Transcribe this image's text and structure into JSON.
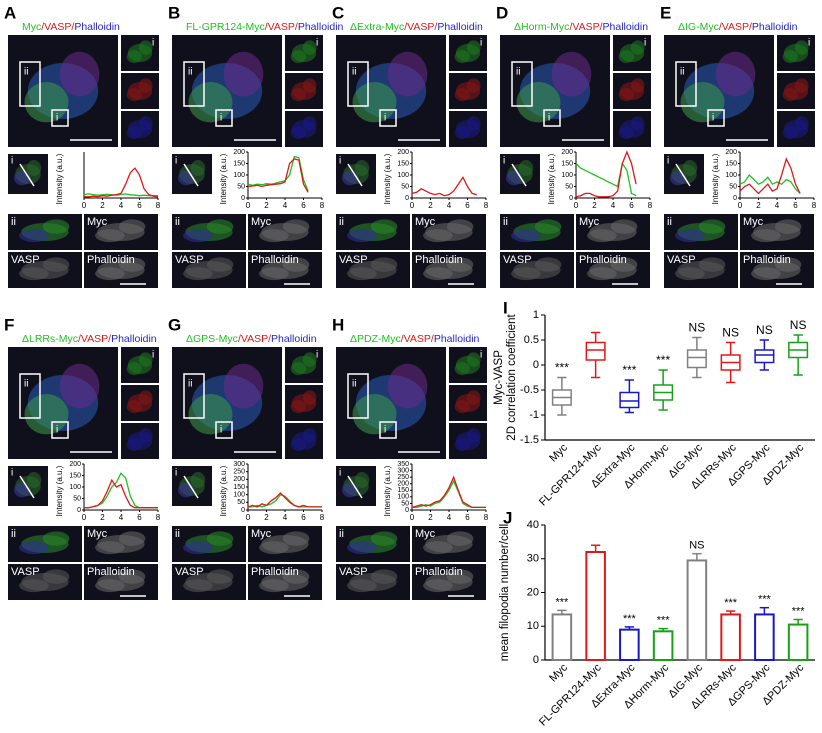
{
  "panels": [
    {
      "letter": "A",
      "title": [
        {
          "text": "Myc",
          "color": "#22c022"
        },
        {
          "text": "/VASP/",
          "color": "#e01818"
        },
        {
          "text": "Phalloidin",
          "color": "#2424d0"
        }
      ],
      "roi_labels": [
        "i",
        "ii"
      ],
      "side_label": "i",
      "profile_label": "i",
      "zoom_labels": [
        "ii",
        "Myc",
        "VASP",
        "Phalloidin"
      ]
    },
    {
      "letter": "B",
      "title": [
        {
          "text": "FL-GPR124-Myc",
          "color": "#22c022"
        },
        {
          "text": "/VASP/",
          "color": "#e01818"
        },
        {
          "text": "Phalloidin",
          "color": "#2424d0"
        }
      ],
      "roi_labels": [
        "i",
        "ii"
      ],
      "side_label": "i",
      "profile_label": "i",
      "zoom_labels": [
        "ii",
        "Myc",
        "VASP",
        "Phalloidin"
      ]
    },
    {
      "letter": "C",
      "title": [
        {
          "text": "ΔExtra-Myc",
          "color": "#22c022"
        },
        {
          "text": "/VASP/",
          "color": "#e01818"
        },
        {
          "text": "Phalloidin",
          "color": "#2424d0"
        }
      ],
      "roi_labels": [
        "i",
        "ii"
      ],
      "side_label": "i",
      "profile_label": "i",
      "zoom_labels": [
        "ii",
        "Myc",
        "VASP",
        "Phalloidin"
      ]
    },
    {
      "letter": "D",
      "title": [
        {
          "text": "ΔHorm-Myc",
          "color": "#22c022"
        },
        {
          "text": "/VASP/",
          "color": "#e01818"
        },
        {
          "text": "Phalloidin",
          "color": "#2424d0"
        }
      ],
      "roi_labels": [
        "i",
        "ii"
      ],
      "side_label": "i",
      "profile_label": "i",
      "zoom_labels": [
        "ii",
        "Myc",
        "VASP",
        "Phalloidin"
      ]
    },
    {
      "letter": "E",
      "title": [
        {
          "text": "ΔIG-Myc",
          "color": "#22c022"
        },
        {
          "text": "/VASP/",
          "color": "#e01818"
        },
        {
          "text": "Phalloidin",
          "color": "#2424d0"
        }
      ],
      "roi_labels": [
        "i",
        "ii"
      ],
      "side_label": "i",
      "profile_label": "i",
      "zoom_labels": [
        "ii",
        "Myc",
        "VASP",
        "Phalloidin"
      ]
    },
    {
      "letter": "F",
      "title": [
        {
          "text": "ΔLRRs-Myc",
          "color": "#22c022"
        },
        {
          "text": "/VASP/",
          "color": "#e01818"
        },
        {
          "text": "Phalloidin",
          "color": "#2424d0"
        }
      ],
      "roi_labels": [
        "i",
        "ii"
      ],
      "side_label": "i",
      "profile_label": "i",
      "zoom_labels": [
        "ii",
        "Myc",
        "VASP",
        "Phalloidin"
      ]
    },
    {
      "letter": "G",
      "title": [
        {
          "text": "ΔGPS-Myc",
          "color": "#22c022"
        },
        {
          "text": "/VASP/",
          "color": "#e01818"
        },
        {
          "text": "Phalloidin",
          "color": "#2424d0"
        }
      ],
      "roi_labels": [
        "i",
        "ii"
      ],
      "side_label": "i",
      "profile_label": "i",
      "zoom_labels": [
        "ii",
        "Myc",
        "VASP",
        "Phalloidin"
      ]
    },
    {
      "letter": "H",
      "title": [
        {
          "text": "ΔPDZ-Myc",
          "color": "#22c022"
        },
        {
          "text": "/VASP/",
          "color": "#e01818"
        },
        {
          "text": "Phalloidin",
          "color": "#2424d0"
        }
      ],
      "roi_labels": [
        "i",
        "ii"
      ],
      "side_label": "i",
      "profile_label": "i",
      "zoom_labels": [
        "ii",
        "Myc",
        "VASP",
        "Phalloidin"
      ]
    }
  ],
  "chart_data": [
    {
      "type": "line",
      "ylabel": "Intensity (a.u.)",
      "x": [
        0,
        0.5,
        1,
        1.5,
        2,
        2.5,
        3,
        3.5,
        4,
        4.5,
        5,
        5.5,
        6,
        6.5,
        7,
        7.5,
        8
      ],
      "xlim": [
        0,
        8
      ],
      "xticks": [
        0,
        2,
        4,
        6,
        8
      ],
      "ylim": [
        0,
        200
      ],
      "series": [
        {
          "color": "#22c022",
          "values": [
            15,
            18,
            15,
            12,
            14,
            16,
            14,
            12,
            15,
            18,
            14,
            12,
            10,
            12,
            10,
            10,
            10
          ]
        },
        {
          "color": "#e01818",
          "values": [
            5,
            5,
            8,
            6,
            10,
            8,
            12,
            15,
            20,
            60,
            110,
            130,
            100,
            40,
            15,
            8,
            5
          ]
        }
      ]
    },
    {
      "type": "line",
      "ylabel": "Intensity (a.u.)",
      "x": [
        0,
        0.5,
        1,
        1.5,
        2,
        2.5,
        3,
        3.5,
        4,
        4.5,
        5,
        5.5,
        6,
        6.5,
        7,
        7.5,
        8
      ],
      "xlim": [
        0,
        8
      ],
      "xticks": [
        0,
        2,
        4,
        6,
        8
      ],
      "ylim": [
        0,
        200
      ],
      "yticks": [
        0,
        50,
        100,
        150,
        200
      ],
      "series": [
        {
          "color": "#22c022",
          "values": [
            60,
            55,
            60,
            58,
            62,
            60,
            65,
            70,
            75,
            100,
            180,
            175,
            80,
            30,
            null,
            null,
            null
          ]
        },
        {
          "color": "#e01818",
          "values": [
            50,
            52,
            55,
            50,
            55,
            58,
            60,
            62,
            70,
            150,
            170,
            165,
            60,
            25,
            null,
            null,
            null
          ]
        }
      ]
    },
    {
      "type": "line",
      "ylabel": "Intensity (a.u.)",
      "x": [
        0,
        0.5,
        1,
        1.5,
        2,
        2.5,
        3,
        3.5,
        4,
        4.5,
        5,
        5.5,
        6,
        6.5,
        7,
        7.5,
        8
      ],
      "xlim": [
        0,
        8
      ],
      "xticks": [
        0,
        2,
        4,
        6,
        8
      ],
      "ylim": [
        0,
        200
      ],
      "yticks": [
        0,
        50,
        100,
        150,
        200
      ],
      "series": [
        {
          "color": "#e01818",
          "values": [
            20,
            25,
            40,
            30,
            20,
            15,
            20,
            10,
            15,
            30,
            60,
            90,
            50,
            20,
            15,
            null,
            null
          ]
        }
      ]
    },
    {
      "type": "line",
      "ylabel": "Intensity (a.u.)",
      "x": [
        0,
        0.5,
        1,
        1.5,
        2,
        2.5,
        3,
        3.5,
        4,
        4.5,
        5,
        5.5,
        6,
        6.5,
        7,
        7.5,
        8
      ],
      "xlim": [
        0,
        8
      ],
      "xticks": [
        0,
        2,
        4,
        6,
        8
      ],
      "ylim": [
        0,
        200
      ],
      "yticks": [
        0,
        50,
        100,
        150,
        200
      ],
      "series": [
        {
          "color": "#22c022",
          "values": [
            150,
            130,
            120,
            110,
            100,
            90,
            80,
            70,
            60,
            50,
            150,
            120,
            20,
            10,
            null,
            null,
            null
          ]
        },
        {
          "color": "#e01818",
          "values": [
            5,
            10,
            20,
            20,
            10,
            5,
            5,
            5,
            10,
            30,
            150,
            200,
            150,
            60,
            null,
            null,
            null
          ]
        }
      ]
    },
    {
      "type": "line",
      "ylabel": "Intensity (a.u.)",
      "x": [
        0,
        0.5,
        1,
        1.5,
        2,
        2.5,
        3,
        3.5,
        4,
        4.5,
        5,
        5.5,
        6,
        6.5,
        7,
        7.5,
        8
      ],
      "xlim": [
        0,
        8
      ],
      "xticks": [
        0,
        2,
        4,
        6,
        8
      ],
      "ylim": [
        0,
        200
      ],
      "yticks": [
        0,
        50,
        100,
        150,
        200
      ],
      "series": [
        {
          "color": "#22c022",
          "values": [
            60,
            70,
            100,
            80,
            60,
            70,
            90,
            60,
            70,
            60,
            80,
            70,
            40,
            20,
            null,
            null,
            null
          ]
        },
        {
          "color": "#e01818",
          "values": [
            30,
            50,
            60,
            40,
            20,
            40,
            60,
            30,
            40,
            100,
            170,
            130,
            60,
            20,
            null,
            null,
            null
          ]
        }
      ]
    },
    {
      "type": "line",
      "ylabel": "Intensity (a.u.)",
      "x": [
        0,
        0.5,
        1,
        1.5,
        2,
        2.5,
        3,
        3.5,
        4,
        4.5,
        5,
        5.5,
        6,
        6.5,
        7,
        7.5,
        8
      ],
      "xlim": [
        0,
        8
      ],
      "xticks": [
        0,
        2,
        4,
        6,
        8
      ],
      "ylim": [
        0,
        200
      ],
      "yticks": [
        0,
        50,
        100,
        150,
        200
      ],
      "series": [
        {
          "color": "#22c022",
          "values": [
            10,
            10,
            15,
            20,
            30,
            60,
            100,
            120,
            160,
            140,
            60,
            20,
            10,
            10,
            10,
            10,
            10
          ]
        },
        {
          "color": "#e01818",
          "values": [
            10,
            10,
            15,
            20,
            40,
            80,
            130,
            100,
            110,
            60,
            20,
            10,
            10,
            10,
            10,
            10,
            10
          ]
        }
      ]
    },
    {
      "type": "line",
      "ylabel": "Intensity (a.u.)",
      "x": [
        0,
        0.5,
        1,
        1.5,
        2,
        2.5,
        3,
        3.5,
        4,
        4.5,
        5,
        5.5,
        6,
        6.5,
        7,
        7.5,
        8
      ],
      "xlim": [
        0,
        8
      ],
      "xticks": [
        0,
        2,
        4,
        6,
        8
      ],
      "ylim": [
        0,
        300
      ],
      "yticks": [
        0,
        50,
        100,
        150,
        200,
        250,
        300
      ],
      "series": [
        {
          "color": "#22c022",
          "values": [
            20,
            20,
            30,
            20,
            30,
            40,
            60,
            100,
            90,
            60,
            30,
            20,
            20,
            20,
            20,
            20,
            20
          ]
        },
        {
          "color": "#e01818",
          "values": [
            20,
            30,
            20,
            40,
            30,
            60,
            80,
            110,
            80,
            50,
            30,
            20,
            30,
            20,
            20,
            20,
            20
          ]
        }
      ]
    },
    {
      "type": "line",
      "ylabel": "Intensity (a.u.)",
      "x": [
        0,
        0.5,
        1,
        1.5,
        2,
        2.5,
        3,
        3.5,
        4,
        4.5,
        5,
        5.5,
        6,
        6.5,
        7,
        7.5,
        8
      ],
      "xlim": [
        0,
        8
      ],
      "xticks": [
        0,
        2,
        4,
        6,
        8
      ],
      "ylim": [
        0,
        350
      ],
      "yticks": [
        0,
        50,
        100,
        150,
        200,
        250,
        300,
        350
      ],
      "series": [
        {
          "color": "#22c022",
          "values": [
            20,
            20,
            30,
            40,
            30,
            50,
            60,
            100,
            150,
            220,
            140,
            50,
            30,
            20,
            20,
            20,
            20
          ]
        },
        {
          "color": "#e01818",
          "values": [
            20,
            30,
            40,
            30,
            40,
            60,
            70,
            110,
            170,
            250,
            150,
            60,
            40,
            20,
            20,
            20,
            20
          ]
        }
      ]
    },
    {
      "type": "box",
      "letter": "I",
      "ylabel": [
        "Myc-VASP",
        "2D correlation coefficient"
      ],
      "categories": [
        "Myc",
        "FL-GPR124-Myc",
        "ΔExtra-Myc",
        "ΔHorm-Myc",
        "ΔIG-Myc",
        "ΔLRRs-Myc",
        "ΔGPS-Myc",
        "ΔPDZ-Myc"
      ],
      "colors": [
        "#808080",
        "#e01818",
        "#1818c8",
        "#18a018",
        "#808080",
        "#e01818",
        "#1818c8",
        "#18a018"
      ],
      "boxes": [
        {
          "min": -1.0,
          "q1": -0.8,
          "median": -0.65,
          "q3": -0.5,
          "max": -0.25
        },
        {
          "min": -0.25,
          "q1": 0.1,
          "median": 0.3,
          "q3": 0.45,
          "max": 0.65
        },
        {
          "min": -0.95,
          "q1": -0.85,
          "median": -0.72,
          "q3": -0.55,
          "max": -0.3
        },
        {
          "min": -0.9,
          "q1": -0.7,
          "median": -0.55,
          "q3": -0.4,
          "max": -0.1
        },
        {
          "min": -0.25,
          "q1": -0.05,
          "median": 0.15,
          "q3": 0.3,
          "max": 0.55
        },
        {
          "min": -0.35,
          "q1": -0.1,
          "median": 0.05,
          "q3": 0.2,
          "max": 0.45
        },
        {
          "min": -0.1,
          "q1": 0.05,
          "median": 0.2,
          "q3": 0.3,
          "max": 0.5
        },
        {
          "min": -0.2,
          "q1": 0.15,
          "median": 0.3,
          "q3": 0.45,
          "max": 0.6
        }
      ],
      "annotations": [
        "***",
        null,
        "***",
        "***",
        "NS",
        "NS",
        "NS",
        "NS"
      ],
      "ylim": [
        -1.5,
        1.0
      ],
      "yticks": [
        -1.5,
        -1.0,
        -0.5,
        0.0,
        0.5,
        1.0
      ]
    },
    {
      "type": "bar",
      "letter": "J",
      "ylabel": "mean filopodia number/cell",
      "categories": [
        "Myc",
        "FL-GPR124-Myc",
        "ΔExtra-Myc",
        "ΔHorm-Myc",
        "ΔIG-Myc",
        "ΔLRRs-Myc",
        "ΔGPS-Myc",
        "ΔPDZ-Myc"
      ],
      "colors": [
        "#808080",
        "#e01818",
        "#1818c8",
        "#18a018",
        "#808080",
        "#e01818",
        "#1818c8",
        "#18a018"
      ],
      "values": [
        13.5,
        32,
        9,
        8.5,
        29.5,
        13.5,
        13.5,
        10.5
      ],
      "errors": [
        1.2,
        2,
        0.8,
        0.8,
        2,
        1,
        2,
        1.5
      ],
      "annotations": [
        "***",
        null,
        "***",
        "***",
        "NS",
        "***",
        "***",
        "***"
      ],
      "ylim": [
        0,
        40
      ],
      "yticks": [
        0,
        10,
        20,
        30,
        40
      ]
    }
  ]
}
